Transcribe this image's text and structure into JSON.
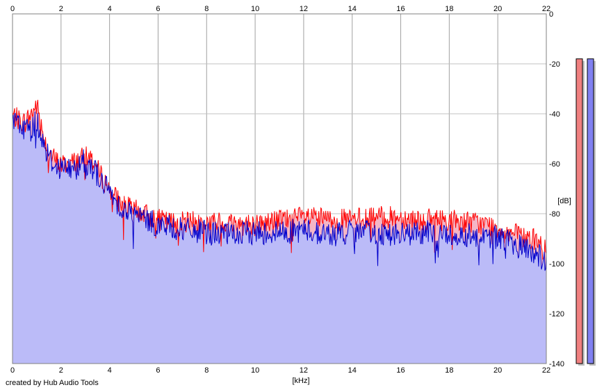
{
  "credit": "created by Hub Audio Tools",
  "chart_data": {
    "type": "area",
    "xlabel": "[kHz]",
    "ylabel": "[dB]",
    "xlim": [
      0,
      22
    ],
    "ylim": [
      -140,
      0
    ],
    "xticks": [
      0,
      2,
      4,
      6,
      8,
      10,
      12,
      14,
      16,
      18,
      20,
      22
    ],
    "yticks": [
      0,
      -20,
      -40,
      -60,
      -80,
      -100,
      -120,
      -140
    ],
    "grid": true,
    "colors": {
      "left_line": "#ff0000",
      "left_fill": "#f4b6c6",
      "right_line": "#0000cc",
      "right_fill": "#bbbbf8",
      "left_meter": "#f08080",
      "right_meter": "#8080f0"
    },
    "x": [
      0,
      0.25,
      0.5,
      0.75,
      1,
      1.25,
      1.5,
      1.75,
      2,
      2.5,
      3,
      3.25,
      3.5,
      4,
      4.5,
      5,
      5.5,
      6,
      6.5,
      7,
      8,
      9,
      10,
      11,
      12,
      13,
      14,
      15,
      16,
      17,
      18,
      19,
      20,
      20.5,
      21,
      21.5,
      22
    ],
    "series": [
      {
        "values": [
          -40,
          -42,
          -43,
          -40,
          -36,
          -47,
          -55,
          -58,
          -60,
          -59,
          -57,
          -57,
          -62,
          -70,
          -76,
          -78,
          -80,
          -82,
          -83,
          -83,
          -83,
          -83,
          -84,
          -82,
          -81,
          -82,
          -82,
          -81,
          -81,
          -82,
          -82,
          -83,
          -85,
          -87,
          -89,
          -90,
          -95
        ]
      },
      {
        "values": [
          -42,
          -44,
          -45,
          -46,
          -42,
          -50,
          -57,
          -60,
          -61,
          -62,
          -58,
          -60,
          -64,
          -71,
          -77,
          -80,
          -82,
          -84,
          -85,
          -86,
          -87,
          -88,
          -87,
          -87,
          -86,
          -88,
          -87,
          -87,
          -88,
          -87,
          -88,
          -88,
          -89,
          -91,
          -93,
          -95,
          -99
        ]
      }
    ],
    "meters": [
      {
        "level_db": -18
      },
      {
        "level_db": -18
      }
    ]
  }
}
